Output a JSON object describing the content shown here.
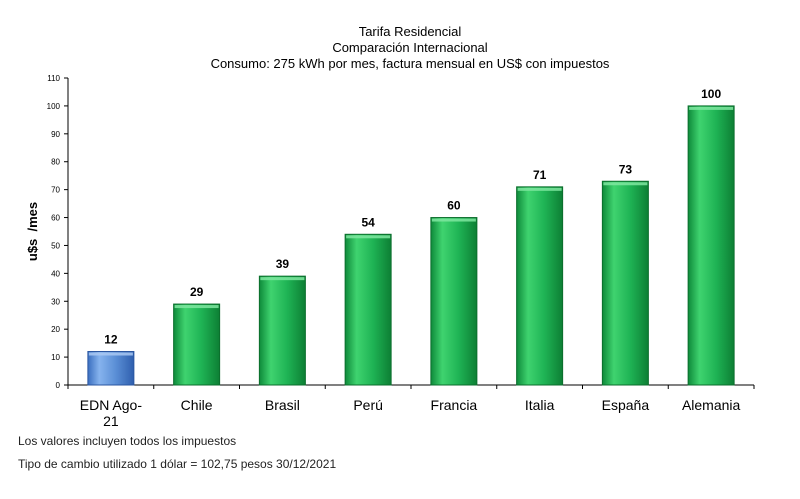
{
  "chart_data": {
    "type": "bar",
    "title": [
      "Tarifa Residencial",
      "Comparación Internacional",
      "Consumo: 275 kWh por mes, factura mensual en US$ con impuestos"
    ],
    "ylabel": "u$s  /mes",
    "xlabel": "",
    "ylim": [
      0,
      110
    ],
    "yticks": [
      0,
      10,
      20,
      30,
      40,
      50,
      60,
      70,
      80,
      90,
      100,
      110
    ],
    "grid": false,
    "legend": "none",
    "categories": [
      "EDN Ago-21",
      "Chile",
      "Brasil",
      "Perú",
      "Francia",
      "Italia",
      "España",
      "Alemania"
    ],
    "category_lines": [
      [
        "EDN Ago-",
        "21"
      ],
      [
        "Chile"
      ],
      [
        "Brasil"
      ],
      [
        "Perú"
      ],
      [
        "Francia"
      ],
      [
        "Italia"
      ],
      [
        "España"
      ],
      [
        "Alemania"
      ]
    ],
    "values": [
      12,
      29,
      39,
      54,
      60,
      71,
      73,
      100
    ],
    "data_labels": [
      "12",
      "29",
      "39",
      "54",
      "60",
      "71",
      "73",
      "100"
    ],
    "bar_colors": [
      "#5b8fd6",
      "#1fb455",
      "#1fb455",
      "#1fb455",
      "#1fb455",
      "#1fb455",
      "#1fb455",
      "#1fb455"
    ]
  },
  "notes": {
    "line1": "Los valores incluyen  todos los impuestos",
    "line2": "Tipo de cambio utilizado 1 dólar = 102,75 pesos 30/12/2021"
  },
  "colors": {
    "highlight_bar": "#5b8fd6",
    "bar": "#1fb455",
    "axis": "#000000"
  }
}
